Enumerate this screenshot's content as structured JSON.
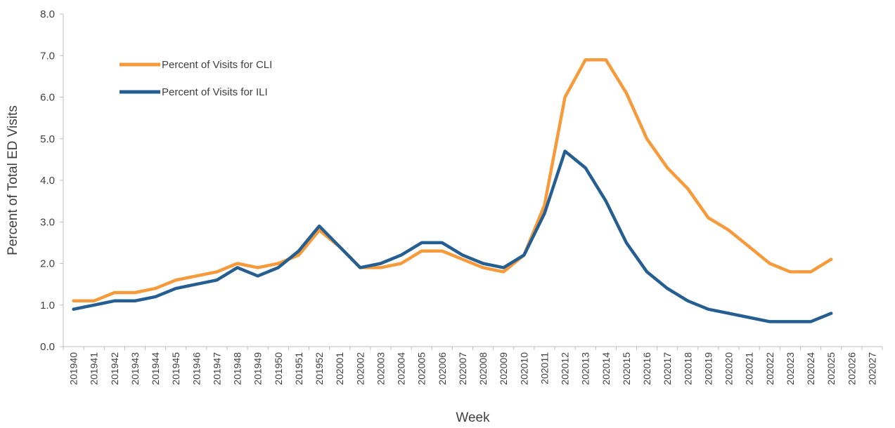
{
  "chart_data": {
    "type": "line",
    "title": "",
    "xlabel": "Week",
    "ylabel": "Percent of Total ED Visits",
    "ylim": [
      0,
      8
    ],
    "yticks": [
      "0.0",
      "1.0",
      "2.0",
      "3.0",
      "4.0",
      "5.0",
      "6.0",
      "7.0",
      "8.0"
    ],
    "grid": false,
    "legend_position": "top-left",
    "categories": [
      "201940",
      "201941",
      "201942",
      "201943",
      "201944",
      "201945",
      "201946",
      "201947",
      "201948",
      "201949",
      "201950",
      "201951",
      "201952",
      "202001",
      "202002",
      "202003",
      "202004",
      "202005",
      "202006",
      "202007",
      "202008",
      "202009",
      "202010",
      "202011",
      "202012",
      "202013",
      "202014",
      "202015",
      "202016",
      "202017",
      "202018",
      "202019",
      "202020",
      "202021",
      "202022",
      "202023",
      "202024",
      "202025",
      "202026",
      "202027"
    ],
    "series": [
      {
        "name": "Percent of Visits for CLI",
        "color": "#F79A3B",
        "values": [
          1.1,
          1.1,
          1.3,
          1.3,
          1.4,
          1.6,
          1.7,
          1.8,
          2.0,
          1.9,
          2.0,
          2.2,
          2.8,
          2.4,
          1.9,
          1.9,
          2.0,
          2.3,
          2.3,
          2.1,
          1.9,
          1.8,
          2.2,
          3.4,
          6.0,
          6.9,
          6.9,
          6.1,
          5.0,
          4.3,
          3.8,
          3.1,
          2.8,
          2.4,
          2.0,
          1.8,
          1.8,
          2.1,
          null,
          null
        ]
      },
      {
        "name": "Percent of Visits for ILI",
        "color": "#255E91",
        "values": [
          0.9,
          1.0,
          1.1,
          1.1,
          1.2,
          1.4,
          1.5,
          1.6,
          1.9,
          1.7,
          1.9,
          2.3,
          2.9,
          2.4,
          1.9,
          2.0,
          2.2,
          2.5,
          2.5,
          2.2,
          2.0,
          1.9,
          2.2,
          3.2,
          4.7,
          4.3,
          3.5,
          2.5,
          1.8,
          1.4,
          1.1,
          0.9,
          0.8,
          0.7,
          0.6,
          0.6,
          0.6,
          0.8,
          null,
          null
        ]
      }
    ]
  }
}
